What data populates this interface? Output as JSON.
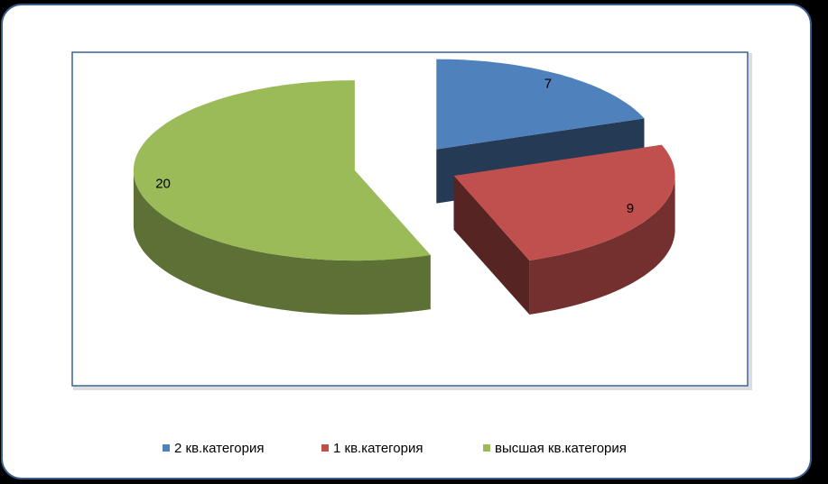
{
  "chart_data": {
    "type": "pie",
    "categories": [
      "2 кв.категория",
      "1 кв.категория",
      "высшая кв.категория"
    ],
    "values": [
      7,
      9,
      20
    ],
    "colors": [
      "#4f81bd",
      "#c0504d",
      "#9bbb59"
    ],
    "legend": "bottom"
  }
}
